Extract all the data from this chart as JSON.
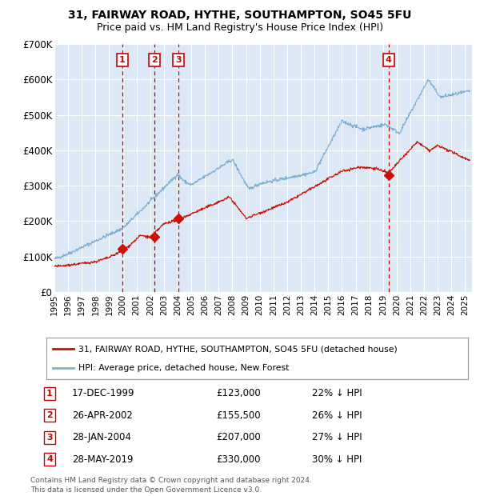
{
  "title": "31, FAIRWAY ROAD, HYTHE, SOUTHAMPTON, SO45 5FU",
  "subtitle": "Price paid vs. HM Land Registry's House Price Index (HPI)",
  "bg_color": "#dce8f5",
  "hpi_color": "#7aafd4",
  "price_color": "#cc1100",
  "marker_color": "#cc1100",
  "vline_color": "#cc0000",
  "ylim": [
    0,
    700000
  ],
  "yticks": [
    0,
    100000,
    200000,
    300000,
    400000,
    500000,
    600000,
    700000
  ],
  "ytick_labels": [
    "£0",
    "£100K",
    "£200K",
    "£300K",
    "£400K",
    "£500K",
    "£600K",
    "£700K"
  ],
  "xlim_start": 1995.0,
  "xlim_end": 2025.5,
  "purchases": [
    {
      "label": "1",
      "date": 1999.96,
      "price": 123000,
      "display_date": "17-DEC-1999",
      "display_price": "£123,000",
      "pct": "22%"
    },
    {
      "label": "2",
      "date": 2002.32,
      "price": 155500,
      "display_date": "26-APR-2002",
      "display_price": "£155,500",
      "pct": "26%"
    },
    {
      "label": "3",
      "date": 2004.08,
      "price": 207000,
      "display_date": "28-JAN-2004",
      "display_price": "£207,000",
      "pct": "27%"
    },
    {
      "label": "4",
      "date": 2019.41,
      "price": 330000,
      "display_date": "28-MAY-2019",
      "display_price": "£330,000",
      "pct": "30%"
    }
  ],
  "legend_label1": "31, FAIRWAY ROAD, HYTHE, SOUTHAMPTON, SO45 5FU (detached house)",
  "legend_label2": "HPI: Average price, detached house, New Forest",
  "footer1": "Contains HM Land Registry data © Crown copyright and database right 2024.",
  "footer2": "This data is licensed under the Open Government Licence v3.0."
}
